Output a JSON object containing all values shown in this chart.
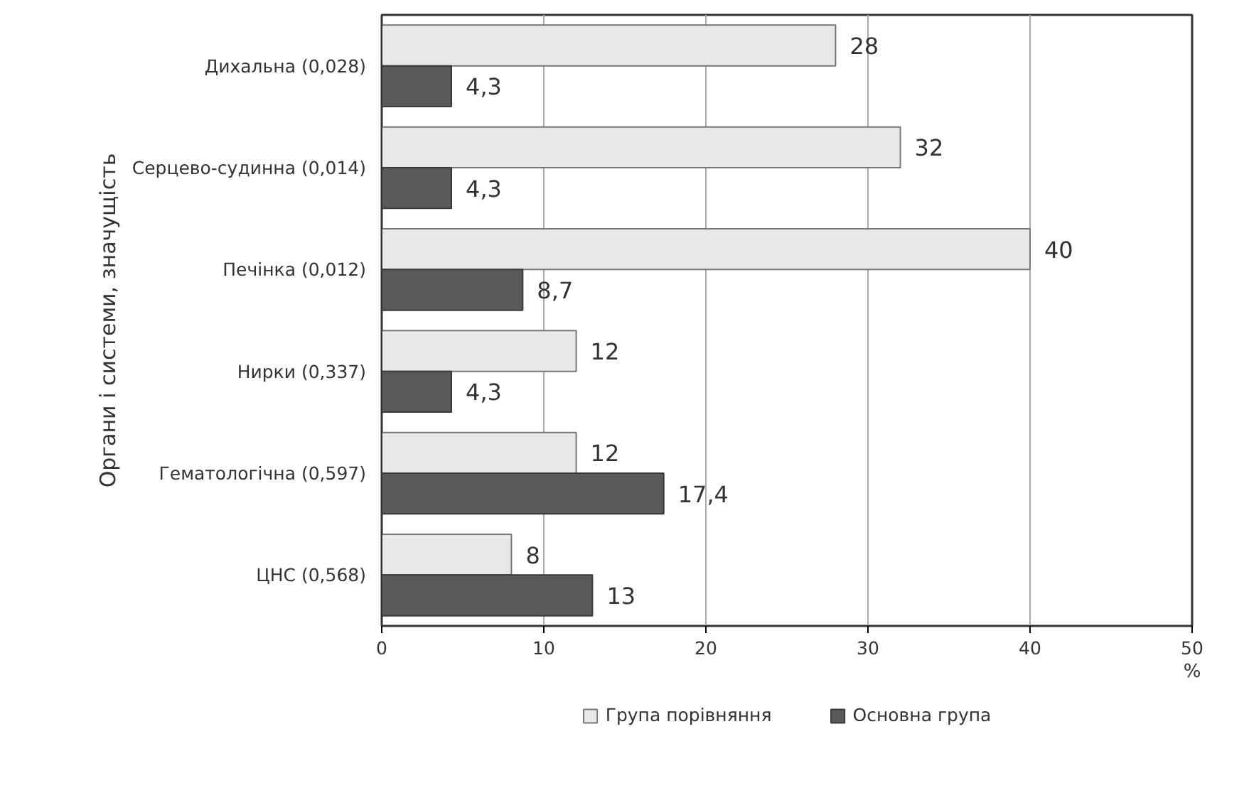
{
  "chart_data": {
    "type": "bar",
    "orientation": "horizontal",
    "ylabel": "Органи і системи, значущість",
    "xlabel": "%",
    "categories": [
      "Дихальна (0,028)",
      "Серцево-судинна (0,014)",
      "Печінка (0,012)",
      "Нирки (0,337)",
      "Гематологічна (0,597)",
      "ЦНС (0,568)"
    ],
    "series": [
      {
        "name": "Група порівняння",
        "color": "#e8e8ea",
        "values": [
          28,
          32,
          40,
          12,
          12,
          8
        ],
        "value_labels": [
          "28",
          "32",
          "40",
          "12",
          "12",
          "8"
        ]
      },
      {
        "name": "Основна група",
        "color": "#58595b",
        "values": [
          4.3,
          4.3,
          8.7,
          4.3,
          17.4,
          13
        ],
        "value_labels": [
          "4,3",
          "4,3",
          "8,7",
          "4,3",
          "17,4",
          "13"
        ]
      }
    ],
    "xlim": [
      0,
      50
    ],
    "xticks": [
      0,
      10,
      20,
      30,
      40,
      50
    ],
    "grid": "x",
    "legend": "bottom"
  }
}
